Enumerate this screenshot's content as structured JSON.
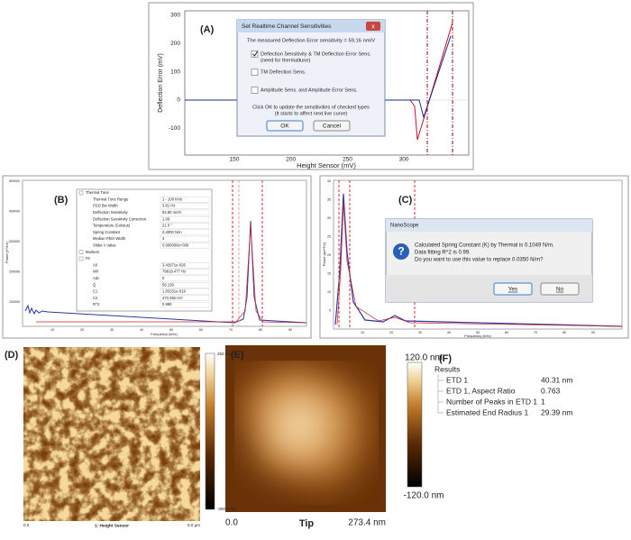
{
  "panel_a": {
    "label": "(A)",
    "y_axis_label": "Deflection Error (mV)",
    "x_axis_label": "Height Sensor (mV)",
    "yticks": [
      "300",
      "200",
      "100",
      "0",
      "-100"
    ],
    "xticks": [
      "150",
      "200",
      "250",
      "300"
    ],
    "dialog": {
      "title": "Set Realtime Channel Sensitivities",
      "message": "The measured Deflection Error sensitivity = 59.16 nm/V",
      "options": [
        {
          "label": "Deflection Sensitivity & TM Deflection Error Sens.",
          "note": "(need for thermaltune)",
          "checked": true
        },
        {
          "label": "TM Deflection Sens.",
          "checked": false
        },
        {
          "label": "Amplitude Sens. and Amplitude Error Sens.",
          "checked": false
        }
      ],
      "instruction": "Click OK to update the sensitivities of checked types",
      "instruction_note": "(It starts to affect next live curve)",
      "buttons": [
        "OK",
        "Cancel"
      ]
    }
  },
  "panel_b": {
    "label": "(B)",
    "y_axis_label": "Power (V²/Hz)",
    "x_axis_label": "Frequency (kHz)",
    "yticks": [
      "500000",
      "400000",
      "300000",
      "200000",
      "100000"
    ],
    "xticks": [
      "10",
      "20",
      "30",
      "40",
      "50",
      "60",
      "70",
      "80",
      "90"
    ],
    "table": [
      [
        "Thermal Tune",
        ""
      ],
      [
        "Thermal Tune Range",
        "1 - 100 KHz"
      ],
      [
        "PSD Bin Width",
        "3.81 Hz"
      ],
      [
        "Deflection Sensitivity",
        "82.80 nm/V"
      ],
      [
        "Deflection Sensitivity Correction",
        "1.09"
      ],
      [
        "Temperature (Celsius)",
        "21.0 °"
      ],
      [
        "Spring Constant",
        "0.4000 N/m"
      ],
      [
        "Median Filter Width",
        "3"
      ],
      [
        "Slider A Value",
        "0.000000e+000"
      ],
      [
        "Markers",
        ""
      ],
      [
        "Fit",
        ""
      ],
      [
        "A0",
        "3.42971e-026"
      ],
      [
        "W0",
        "79819.477 Hz"
      ],
      [
        "Adc",
        "0"
      ],
      [
        "Q",
        "58.139"
      ],
      [
        "C1",
        "1.83151e-019"
      ],
      [
        "C2",
        "473.392 Hz²"
      ],
      [
        "R^2",
        "0.990"
      ]
    ]
  },
  "panel_c": {
    "label": "(C)",
    "y_axis_label": "Power (pm²/Hz)",
    "x_axis_label": "Frequency (kHz)",
    "yticks": [
      "40",
      "35",
      "30",
      "25",
      "20",
      "15",
      "10",
      "5"
    ],
    "xticks": [
      "10",
      "20",
      "30",
      "40",
      "50",
      "60",
      "70",
      "80",
      "90"
    ],
    "dialog": {
      "title": "NanoScope",
      "lines": [
        "Calculated Spring Constant (K) by Thermal is 0.1049 N/m.",
        "Data fitting R^2 is 0.99.",
        "Do you want to use this value to replace 0.0350 N/m?"
      ],
      "buttons": [
        "Yes",
        "No"
      ]
    }
  },
  "panel_d": {
    "label": "(D)",
    "scale_max": "250.0 nm",
    "scale_min": "-250.0 nm",
    "x_start": "0.0",
    "channel": "1: Height Sensor",
    "x_end": "5.0 µm"
  },
  "panel_e": {
    "label": "(E)",
    "scale_max": "120.0 nm",
    "scale_min": "-120.0 nm",
    "x_start": "0.0",
    "caption": "Tip",
    "x_end": "273.4 nm"
  },
  "panel_f": {
    "label": "(F)",
    "heading": "Results",
    "rows": [
      [
        "ETD 1",
        "40.31 nm"
      ],
      [
        "ETD 1, Aspect Ratio",
        "0.763"
      ],
      [
        "Number of Peaks in ETD 1",
        "1"
      ],
      [
        "Estimated End Radius 1",
        "29.39 nm"
      ]
    ]
  }
}
